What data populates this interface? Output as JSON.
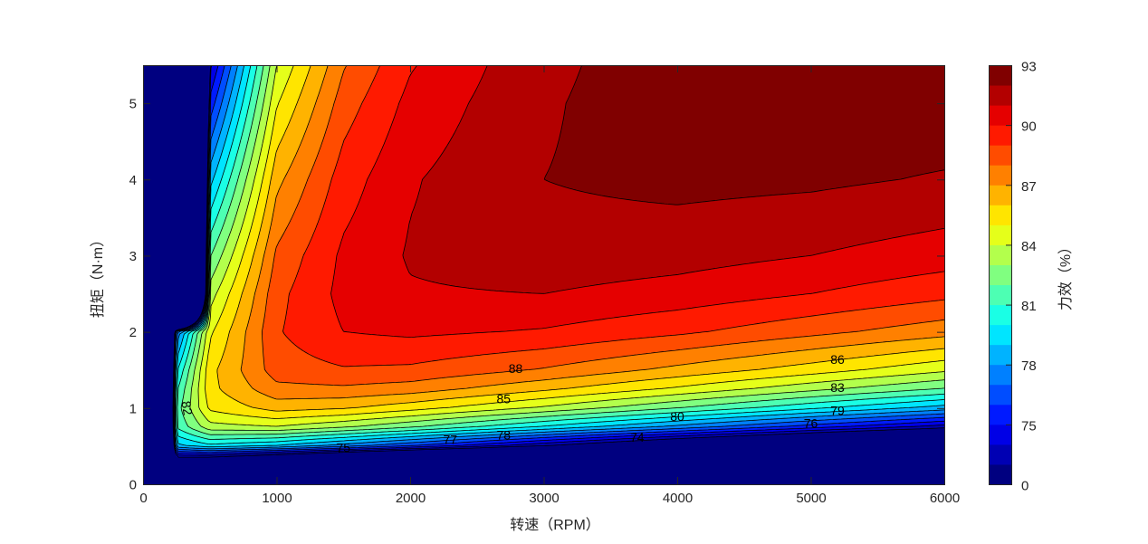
{
  "chart_data": {
    "type": "contour",
    "colormap": "jet",
    "xlabel": "转速（RPM）",
    "ylabel": "扭矩（N·m）",
    "colorbar_label": "力效（%）",
    "xlim": [
      0,
      6000
    ],
    "ylim": [
      0,
      5.5
    ],
    "xticks": [
      "0",
      "1000",
      "2000",
      "3000",
      "4000",
      "5000",
      "6000"
    ],
    "yticks": [
      "0",
      "1",
      "2",
      "3",
      "4",
      "5"
    ],
    "levels": [
      0,
      73,
      74,
      75,
      76,
      77,
      78,
      79,
      80,
      81,
      82,
      83,
      84,
      85,
      86,
      87,
      88,
      89,
      90,
      91,
      92,
      93
    ],
    "colorbar_ticks": [
      "0",
      "75",
      "78",
      "81",
      "84",
      "87",
      "90",
      "93"
    ],
    "grid_x": [
      0,
      250,
      500,
      1000,
      1500,
      2000,
      3000,
      4000,
      5000,
      6000
    ],
    "grid_y": [
      0,
      0.25,
      0.5,
      0.75,
      1,
      1.25,
      1.5,
      2,
      2.5,
      3,
      4,
      5,
      5.5
    ],
    "z": [
      [
        0,
        0,
        0,
        0,
        0,
        0,
        0,
        0,
        0,
        0
      ],
      [
        0,
        68.9,
        68.2,
        66.0,
        63.7,
        61.5,
        57.6,
        54.0,
        50.9,
        48.1
      ],
      [
        0,
        78.6,
        79.6,
        78.8,
        77.4,
        75.9,
        72.9,
        70.0,
        67.4,
        64.9
      ],
      [
        0,
        81.1,
        83.6,
        83.9,
        83.1,
        82.1,
        79.8,
        77.6,
        75.4,
        73.4
      ],
      [
        0,
        81.5,
        85.2,
        86.4,
        86.1,
        85.4,
        83.8,
        82.0,
        80.2,
        78.5
      ],
      [
        0,
        80.8,
        85.7,
        87.7,
        87.8,
        87.5,
        86.2,
        84.8,
        83.3,
        81.9
      ],
      [
        0,
        79.8,
        85.7,
        88.5,
        88.9,
        88.8,
        87.9,
        86.7,
        85.5,
        84.2
      ],
      [
        0,
        77.1,
        84.8,
        88.9,
        90.0,
        90.2,
        89.9,
        89.2,
        88.3,
        87.4
      ],
      [
        0,
        0,
        83.5,
        88.7,
        90.3,
        90.9,
        91.0,
        90.6,
        90.0,
        89.3
      ],
      [
        0,
        0,
        81.9,
        88.2,
        90.2,
        91.1,
        91.6,
        91.4,
        91.0,
        90.5
      ],
      [
        0,
        0,
        78.6,
        86.7,
        89.5,
        90.9,
        92.0,
        92.3,
        92.2,
        91.9
      ],
      [
        0,
        0,
        75.3,
        84.9,
        88.5,
        90.3,
        91.9,
        92.5,
        92.7,
        92.7
      ],
      [
        0,
        0,
        73.7,
        84.0,
        87.9,
        89.9,
        91.8,
        92.5,
        92.8,
        92.9
      ]
    ],
    "contour_labels": [
      {
        "text": "88",
        "x": 2790,
        "y": 1.52
      },
      {
        "text": "85",
        "x": 2700,
        "y": 1.12
      },
      {
        "text": "86",
        "x": 5200,
        "y": 1.64
      },
      {
        "text": "83",
        "x": 5200,
        "y": 1.27
      },
      {
        "text": "80",
        "x": 4000,
        "y": 0.89
      },
      {
        "text": "79",
        "x": 5200,
        "y": 0.97
      },
      {
        "text": "78",
        "x": 2700,
        "y": 0.65
      },
      {
        "text": "77",
        "x": 2300,
        "y": 0.59
      },
      {
        "text": "76",
        "x": 5000,
        "y": 0.8
      },
      {
        "text": "75",
        "x": 1500,
        "y": 0.48
      },
      {
        "text": "74",
        "x": 3700,
        "y": 0.62
      },
      {
        "text": "82",
        "x": 330,
        "y": 1.0,
        "rotated": true
      }
    ]
  }
}
